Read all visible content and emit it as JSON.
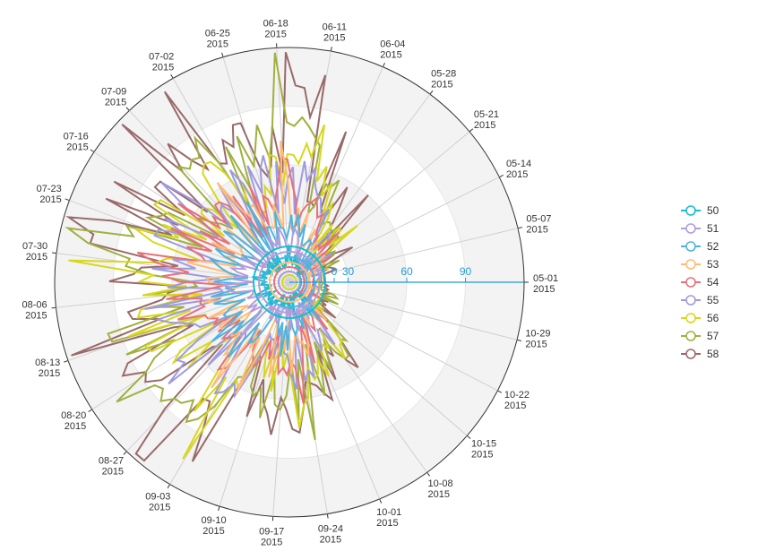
{
  "chart_data": {
    "type": "polar-line",
    "title": "",
    "angle_axis": {
      "ticks": [
        {
          "date": "05-01",
          "year": "2015"
        },
        {
          "date": "05-07",
          "year": "2015"
        },
        {
          "date": "05-14",
          "year": "2015"
        },
        {
          "date": "05-21",
          "year": "2015"
        },
        {
          "date": "05-28",
          "year": "2015"
        },
        {
          "date": "06-04",
          "year": "2015"
        },
        {
          "date": "06-11",
          "year": "2015"
        },
        {
          "date": "06-18",
          "year": "2015"
        },
        {
          "date": "06-25",
          "year": "2015"
        },
        {
          "date": "07-02",
          "year": "2015"
        },
        {
          "date": "07-09",
          "year": "2015"
        },
        {
          "date": "07-16",
          "year": "2015"
        },
        {
          "date": "07-23",
          "year": "2015"
        },
        {
          "date": "07-30",
          "year": "2015"
        },
        {
          "date": "08-06",
          "year": "2015"
        },
        {
          "date": "08-13",
          "year": "2015"
        },
        {
          "date": "08-20",
          "year": "2015"
        },
        {
          "date": "08-27",
          "year": "2015"
        },
        {
          "date": "09-03",
          "year": "2015"
        },
        {
          "date": "09-10",
          "year": "2015"
        },
        {
          "date": "09-17",
          "year": "2015"
        },
        {
          "date": "09-24",
          "year": "2015"
        },
        {
          "date": "10-01",
          "year": "2015"
        },
        {
          "date": "10-08",
          "year": "2015"
        },
        {
          "date": "10-15",
          "year": "2015"
        },
        {
          "date": "10-22",
          "year": "2015"
        },
        {
          "date": "10-29",
          "year": "2015"
        }
      ]
    },
    "radial_axis": {
      "ticks": [
        "0",
        "30",
        "60",
        "90"
      ],
      "range": [
        0,
        120
      ],
      "color": "#1f9bd6"
    },
    "legend": {
      "placement": "right",
      "items": [
        {
          "label": "50",
          "color": "#17becf"
        },
        {
          "label": "51",
          "color": "#b39ddb"
        },
        {
          "label": "52",
          "color": "#4fb3e0"
        },
        {
          "label": "53",
          "color": "#ffbb78"
        },
        {
          "label": "54",
          "color": "#e8707a"
        },
        {
          "label": "55",
          "color": "#9e9ae0"
        },
        {
          "label": "56",
          "color": "#d7d71e"
        },
        {
          "label": "57",
          "color": "#a0b040"
        },
        {
          "label": "58",
          "color": "#9a6a6a"
        }
      ]
    },
    "series_peaks": {
      "50": 20,
      "51": 32,
      "52": 44,
      "53": 56,
      "54": 68,
      "55": 80,
      "56": 92,
      "57": 104,
      "58": 116
    }
  }
}
